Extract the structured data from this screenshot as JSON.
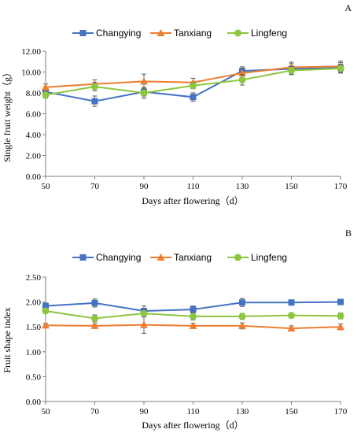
{
  "colors": {
    "Changying": "#4472c4",
    "Tanxiang": "#ed7d31",
    "Lingfeng": "#8dc63f"
  },
  "chart_data": [
    {
      "type": "line",
      "panel_label": "A",
      "x": [
        50,
        70,
        90,
        110,
        130,
        150,
        170
      ],
      "xlabel": "Days after flowering（d）",
      "ylabel": "Single fruit weight（g）",
      "ylim": [
        0,
        12
      ],
      "yticks": [
        "0.00",
        "2.00",
        "4.00",
        "6.00",
        "8.00",
        "10.00",
        "12.00"
      ],
      "grid": false,
      "legend": "top",
      "series": [
        {
          "name": "Changying",
          "marker": "square",
          "values": [
            8.1,
            7.2,
            8.1,
            7.6,
            10.1,
            10.3,
            10.4
          ],
          "errors": [
            0.4,
            0.5,
            0.4,
            0.4,
            0.4,
            0.5,
            0.5
          ]
        },
        {
          "name": "Tanxiang",
          "marker": "triangle",
          "values": [
            8.55,
            8.85,
            9.1,
            9.0,
            9.9,
            10.45,
            10.55
          ],
          "errors": [
            0.3,
            0.4,
            0.7,
            0.4,
            0.4,
            0.5,
            0.5
          ]
        },
        {
          "name": "Lingfeng",
          "marker": "circle",
          "values": [
            7.8,
            8.6,
            8.0,
            8.7,
            9.25,
            10.15,
            10.35
          ],
          "errors": [
            0.3,
            0.4,
            0.5,
            0.3,
            0.5,
            0.4,
            0.4
          ]
        }
      ]
    },
    {
      "type": "line",
      "panel_label": "B",
      "x": [
        50,
        70,
        90,
        110,
        130,
        150,
        170
      ],
      "xlabel": "Days after flowering（d）",
      "ylabel": "Fruit shape index",
      "ylim": [
        0,
        2.5
      ],
      "yticks": [
        "0.00",
        "0.50",
        "1.00",
        "1.50",
        "2.00",
        "2.50"
      ],
      "grid": false,
      "legend": "top",
      "series": [
        {
          "name": "Changying",
          "marker": "square",
          "values": [
            1.92,
            1.98,
            1.82,
            1.85,
            1.99,
            1.99,
            2.0
          ],
          "errors": [
            0.06,
            0.08,
            0.1,
            0.07,
            0.08,
            0.03,
            0.03
          ]
        },
        {
          "name": "Tanxiang",
          "marker": "triangle",
          "values": [
            1.53,
            1.52,
            1.54,
            1.52,
            1.52,
            1.47,
            1.5
          ],
          "errors": [
            0.04,
            0.04,
            0.17,
            0.05,
            0.06,
            0.05,
            0.06
          ]
        },
        {
          "name": "Lingfeng",
          "marker": "circle",
          "values": [
            1.82,
            1.67,
            1.77,
            1.71,
            1.71,
            1.73,
            1.72
          ],
          "errors": [
            0.05,
            0.07,
            0.07,
            0.07,
            0.06,
            0.05,
            0.06
          ]
        }
      ]
    }
  ]
}
